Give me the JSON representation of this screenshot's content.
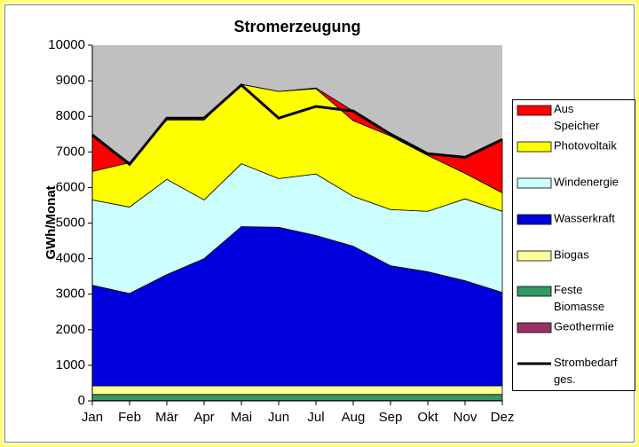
{
  "chart_data": {
    "type": "stacked-area",
    "title": "Stromerzeugung",
    "y_label": "GWh/Monat",
    "categories": [
      "Jan",
      "Feb",
      "Mär",
      "Apr",
      "Mai",
      "Jun",
      "Jul",
      "Aug",
      "Sep",
      "Okt",
      "Nov",
      "Dez"
    ],
    "series": [
      {
        "name": "Aus Speicher",
        "color": "#ff0000",
        "values": [
          1030,
          0,
          50,
          50,
          0,
          0,
          20,
          270,
          50,
          50,
          450,
          1500
        ]
      },
      {
        "name": "Photovoltaik",
        "color": "#ffff00",
        "values": [
          800,
          1250,
          1670,
          2250,
          2230,
          2450,
          2400,
          2130,
          2070,
          1570,
          720,
          520
        ]
      },
      {
        "name": "Windenergie",
        "color": "#ccffff",
        "values": [
          2400,
          2430,
          2680,
          1650,
          1770,
          1370,
          1730,
          1400,
          1580,
          1700,
          2300,
          2280
        ]
      },
      {
        "name": "Wasserkraft",
        "color": "#0000dd",
        "values": [
          2830,
          2600,
          3130,
          3580,
          4480,
          4460,
          4230,
          3930,
          3380,
          3210,
          2960,
          2630
        ]
      },
      {
        "name": "Biogas",
        "color": "#ffff99",
        "values": [
          240,
          240,
          240,
          240,
          240,
          240,
          240,
          240,
          240,
          240,
          240,
          240
        ]
      },
      {
        "name": "Feste Biomasse",
        "color": "#339966",
        "values": [
          170,
          170,
          170,
          170,
          170,
          170,
          170,
          170,
          170,
          170,
          170,
          170
        ]
      },
      {
        "name": "Geothermie",
        "color": "#993366",
        "values": [
          10,
          10,
          10,
          10,
          10,
          10,
          10,
          10,
          10,
          10,
          10,
          10
        ]
      }
    ],
    "line_series": {
      "name": "Strombedarf ges.",
      "color": "#000000",
      "values": [
        7480,
        6650,
        7950,
        7950,
        8880,
        7950,
        8280,
        8150,
        7500,
        6950,
        6850,
        7350
      ]
    },
    "ylim": [
      0,
      10000
    ],
    "yticks": [
      0,
      1000,
      2000,
      3000,
      4000,
      5000,
      6000,
      7000,
      8000,
      9000,
      10000
    ],
    "plot_background": "#c0c0c0"
  }
}
